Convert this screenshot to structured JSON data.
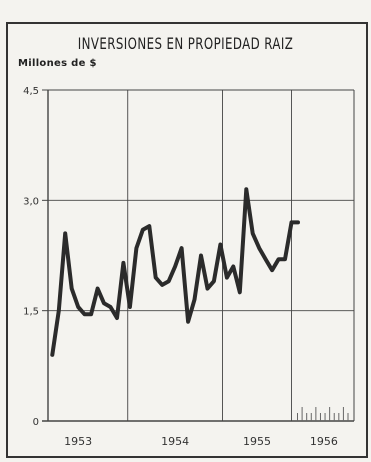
{
  "chart_data": {
    "type": "line",
    "title": "INVERSIONES EN PROPIEDAD RAIZ",
    "ylabel": "Millones de $",
    "xlabel": "",
    "ylim": [
      0,
      4.5
    ],
    "yticks": [
      "0",
      "1,5",
      "3,0",
      "4,5"
    ],
    "ytick_values": [
      0,
      1.5,
      3.0,
      4.5
    ],
    "x_categories": [
      "1953",
      "1954",
      "1955",
      "1956"
    ],
    "grid": true,
    "series": [
      {
        "points": [
          {
            "x": 0.0,
            "y": 0.9
          },
          {
            "x": 0.15,
            "y": 1.5
          },
          {
            "x": 0.3,
            "y": 2.55
          },
          {
            "x": 0.45,
            "y": 1.8
          },
          {
            "x": 0.6,
            "y": 1.55
          },
          {
            "x": 0.75,
            "y": 1.45
          },
          {
            "x": 0.9,
            "y": 1.45
          },
          {
            "x": 1.05,
            "y": 1.8
          },
          {
            "x": 1.2,
            "y": 1.6
          },
          {
            "x": 1.35,
            "y": 1.55
          },
          {
            "x": 1.5,
            "y": 1.4
          },
          {
            "x": 1.65,
            "y": 2.15
          },
          {
            "x": 1.8,
            "y": 1.55
          },
          {
            "x": 1.95,
            "y": 2.35
          },
          {
            "x": 2.1,
            "y": 2.6
          },
          {
            "x": 2.25,
            "y": 2.65
          },
          {
            "x": 2.4,
            "y": 1.95
          },
          {
            "x": 2.55,
            "y": 1.85
          },
          {
            "x": 2.7,
            "y": 1.9
          },
          {
            "x": 2.85,
            "y": 2.1
          },
          {
            "x": 3.0,
            "y": 2.35
          },
          {
            "x": 3.15,
            "y": 1.35
          },
          {
            "x": 3.3,
            "y": 1.65
          },
          {
            "x": 3.45,
            "y": 2.25
          },
          {
            "x": 3.6,
            "y": 1.8
          },
          {
            "x": 3.75,
            "y": 1.9
          },
          {
            "x": 3.9,
            "y": 2.4
          },
          {
            "x": 4.05,
            "y": 1.95
          },
          {
            "x": 4.2,
            "y": 2.1
          },
          {
            "x": 4.35,
            "y": 1.75
          },
          {
            "x": 4.5,
            "y": 3.15
          },
          {
            "x": 4.65,
            "y": 2.55
          },
          {
            "x": 4.8,
            "y": 2.35
          },
          {
            "x": 4.95,
            "y": 2.2
          },
          {
            "x": 5.1,
            "y": 2.05
          },
          {
            "x": 5.25,
            "y": 2.2
          },
          {
            "x": 5.4,
            "y": 2.2
          },
          {
            "x": 5.55,
            "y": 2.7
          },
          {
            "x": 5.7,
            "y": 2.7
          }
        ]
      }
    ],
    "x_range": [
      -0.1,
      7.0
    ],
    "year_boundaries": [
      1.75,
      3.95,
      5.55
    ],
    "year_centers": [
      0.6,
      2.85,
      4.75,
      6.3
    ],
    "future_ticks": 12,
    "line_color": "#2b2b2b",
    "grid_color": "#444444"
  }
}
